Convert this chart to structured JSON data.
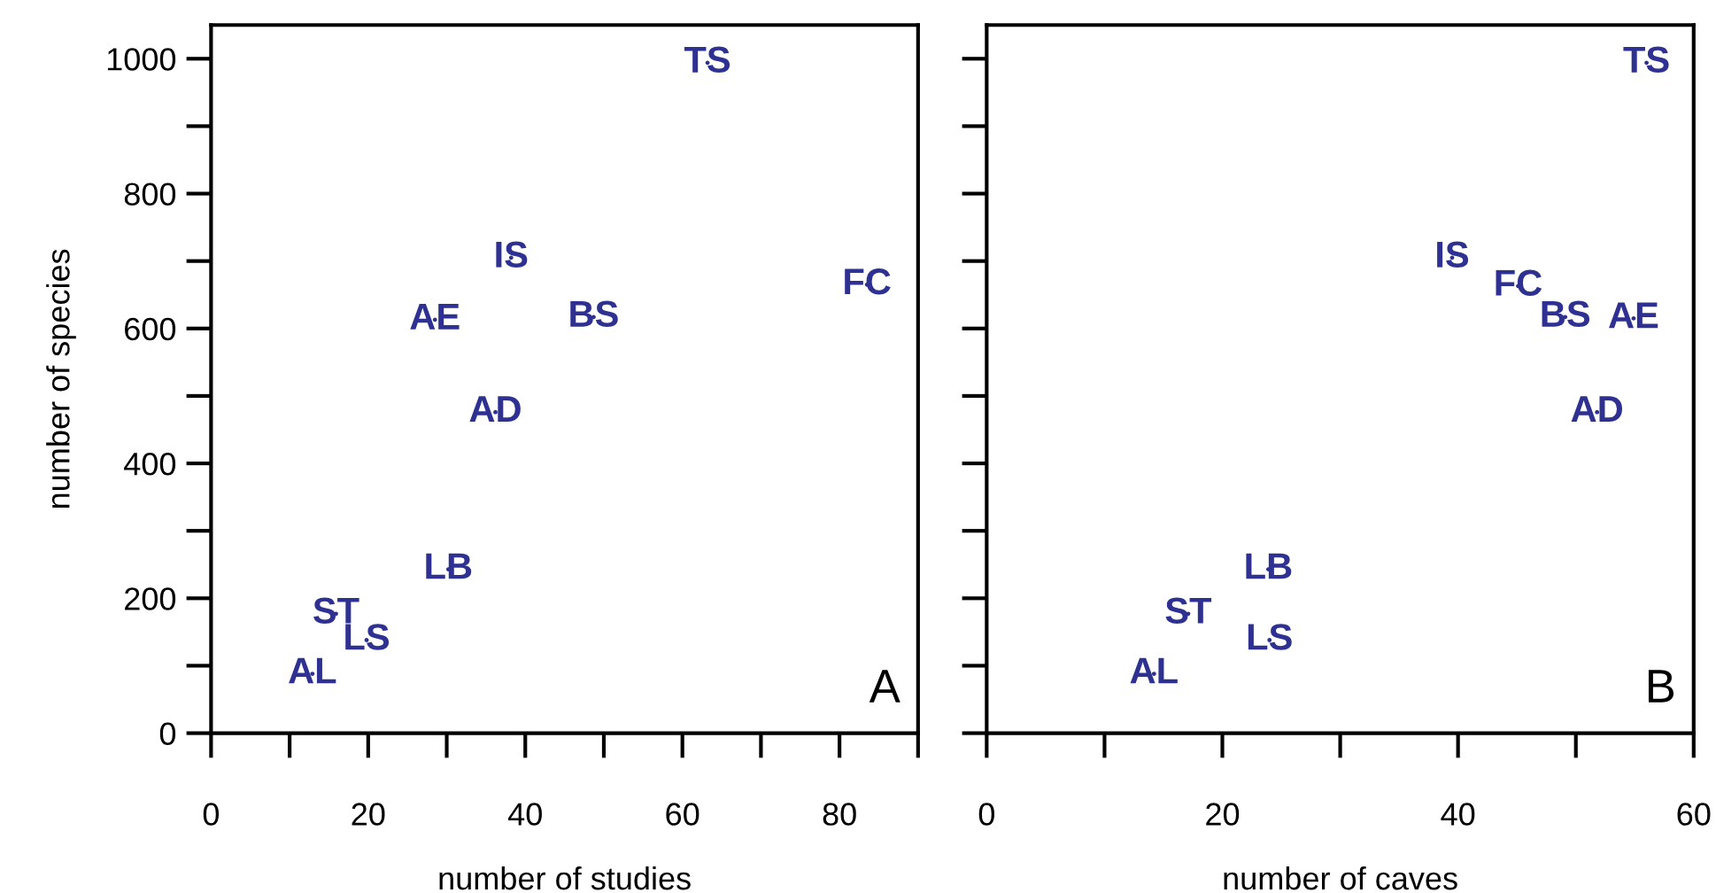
{
  "chart_data": [
    {
      "type": "scatter",
      "xlabel": "number of studies",
      "ylabel": "number of species",
      "annotations": [
        "A"
      ],
      "xlim": [
        0,
        90
      ],
      "ylim": [
        0,
        1050
      ],
      "xticks": [
        0,
        {
          "value": 10,
          "label": null
        },
        20,
        {
          "value": 30,
          "label": null
        },
        40,
        {
          "value": 50,
          "label": null
        },
        60,
        {
          "value": 70,
          "label": null
        },
        80,
        {
          "value": 90,
          "label": null
        }
      ],
      "yticks": [
        0,
        {
          "value": 100,
          "label": null
        },
        200,
        {
          "value": 300,
          "label": null
        },
        400,
        {
          "value": 500,
          "label": null
        },
        600,
        {
          "value": 700,
          "label": null
        },
        800,
        {
          "value": 900,
          "label": null
        },
        1000
      ],
      "marker": "none",
      "grid": false,
      "legend": false,
      "series": [
        {
          "color": "#2e3192",
          "x": [
            63.2,
            38.2,
            28.5,
            48.7,
            83.5,
            36.2,
            30.2,
            15.9,
            19.8,
            12.9
          ],
          "values": [
            994,
            705,
            613,
            617,
            665,
            476,
            243,
            177,
            138,
            88
          ],
          "value_labels": [
            "TS",
            "IS",
            "AE",
            "BS",
            "FC",
            "AD",
            "LB",
            "ST",
            "LS",
            "AL"
          ]
        }
      ]
    },
    {
      "type": "scatter",
      "xlabel": "number of caves",
      "annotations": [
        "B"
      ],
      "xlim": [
        0,
        60
      ],
      "ylim": [
        0,
        1050
      ],
      "tick_labels": "x",
      "xticks": [
        0,
        {
          "value": 10,
          "label": null
        },
        20,
        {
          "value": 30,
          "label": null
        },
        40,
        {
          "value": 50,
          "label": null
        },
        60
      ],
      "yticks": [
        0,
        {
          "value": 100,
          "label": null
        },
        200,
        {
          "value": 300,
          "label": null
        },
        400,
        {
          "value": 500,
          "label": null
        },
        600,
        {
          "value": 700,
          "label": null
        },
        800,
        {
          "value": 900,
          "label": null
        },
        1000
      ],
      "marker": "none",
      "grid": false,
      "legend": false,
      "series": [
        {
          "color": "#2e3192",
          "x": [
            56.0,
            39.5,
            45.1,
            49.1,
            54.9,
            51.8,
            23.9,
            24.0,
            17.1,
            14.2
          ],
          "values": [
            994,
            705,
            663,
            617,
            615,
            476,
            243,
            138,
            177,
            88
          ],
          "value_labels": [
            "TS",
            "IS",
            "FC",
            "BS",
            "AE",
            "AD",
            "LB",
            "LS",
            "ST",
            "AL"
          ]
        }
      ]
    }
  ]
}
